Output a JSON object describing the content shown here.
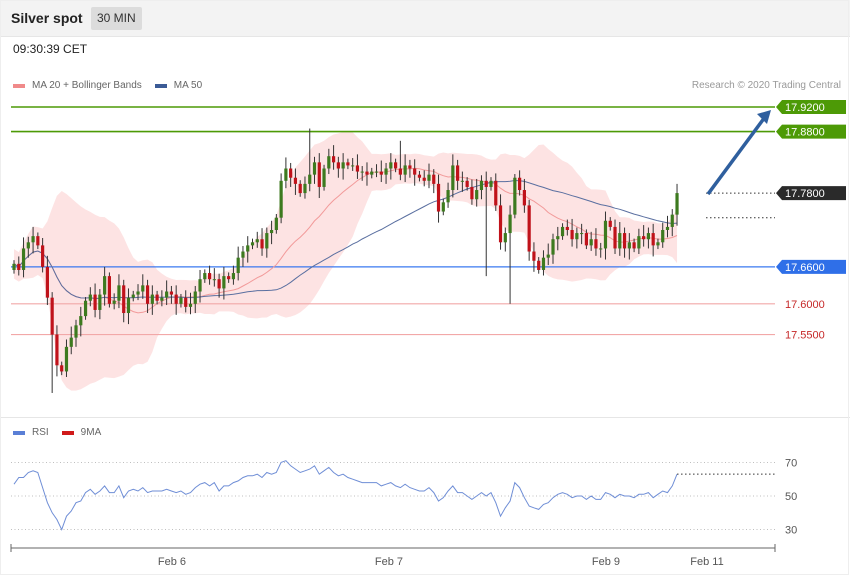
{
  "header": {
    "title": "Silver spot",
    "timeframe": "30 MIN"
  },
  "timestamp": "09:30:39 CET",
  "legend": {
    "ma20": "MA 20 + Bollinger Bands",
    "ma50": "MA 50",
    "rsi": "RSI",
    "ma9": "9MA"
  },
  "credit": "Research © 2020 Trading Central",
  "colors": {
    "bull": "#3d7a1f",
    "bear": "#c0121a",
    "band": "#fcdada",
    "ma50": "#5a6fa0",
    "resistance": "#4d9a06",
    "pivot": "#3a78f0",
    "support": "#f2a8a8",
    "rsi": "#6f8ed6",
    "arrow": "#2f5f9e"
  },
  "chart_data": [
    {
      "type": "candlestick",
      "title": "Silver spot",
      "interval": "30 MIN",
      "x_tick_labels": [
        "Feb 6",
        "Feb 7",
        "Feb 9",
        "Feb 11"
      ],
      "ylim": [
        17.45,
        17.93
      ],
      "last_price": 17.78,
      "levels": [
        {
          "label": "17.9200",
          "value": 17.92,
          "kind": "resistance"
        },
        {
          "label": "17.8800",
          "value": 17.88,
          "kind": "resistance"
        },
        {
          "label": "17.7800",
          "value": 17.78,
          "kind": "last"
        },
        {
          "label": "17.6600",
          "value": 17.66,
          "kind": "pivot"
        },
        {
          "label": "17.6000",
          "value": 17.6,
          "kind": "support"
        },
        {
          "label": "17.5500",
          "value": 17.55,
          "kind": "support"
        }
      ],
      "forecast_arrow": {
        "from": 17.78,
        "to": 17.92
      },
      "close": [
        17.665,
        17.655,
        17.69,
        17.7,
        17.71,
        17.695,
        17.66,
        17.61,
        17.55,
        17.5,
        17.49,
        17.53,
        17.545,
        17.565,
        17.58,
        17.605,
        17.615,
        17.59,
        17.615,
        17.645,
        17.6,
        17.605,
        17.63,
        17.585,
        17.61,
        17.615,
        17.62,
        17.63,
        17.6,
        17.615,
        17.605,
        17.61,
        17.62,
        17.615,
        17.6,
        17.61,
        17.595,
        17.6,
        17.62,
        17.64,
        17.65,
        17.64,
        17.64,
        17.625,
        17.645,
        17.64,
        17.65,
        17.675,
        17.685,
        17.695,
        17.7,
        17.705,
        17.69,
        17.715,
        17.72,
        17.74,
        17.8,
        17.82,
        17.805,
        17.795,
        17.78,
        17.795,
        17.81,
        17.83,
        17.79,
        17.82,
        17.84,
        17.83,
        17.82,
        17.83,
        17.825,
        17.825,
        17.815,
        17.815,
        17.81,
        17.815,
        17.815,
        17.81,
        17.82,
        17.83,
        17.82,
        17.81,
        17.825,
        17.82,
        17.81,
        17.805,
        17.8,
        17.81,
        17.795,
        17.75,
        17.765,
        17.785,
        17.825,
        17.8,
        17.8,
        17.79,
        17.77,
        17.785,
        17.8,
        17.79,
        17.8,
        17.76,
        17.7,
        17.715,
        17.745,
        17.805,
        17.785,
        17.76,
        17.685,
        17.67,
        17.655,
        17.675,
        17.68,
        17.705,
        17.71,
        17.725,
        17.72,
        17.705,
        17.715,
        17.715,
        17.695,
        17.705,
        17.69,
        17.69,
        17.735,
        17.725,
        17.69,
        17.715,
        17.69,
        17.7,
        17.69,
        17.71,
        17.705,
        17.715,
        17.695,
        17.7,
        17.72,
        17.725,
        17.745,
        17.78
      ]
    },
    {
      "type": "line",
      "title": "RSI",
      "series": [
        {
          "name": "RSI"
        },
        {
          "name": "9MA"
        }
      ],
      "y_tick_labels": [
        "70",
        "50",
        "30"
      ],
      "ylim": [
        20,
        80
      ],
      "values": [
        57,
        61,
        61,
        64,
        65,
        64,
        55,
        46,
        40,
        36,
        30,
        38,
        41,
        46,
        47,
        52,
        54,
        51,
        53,
        56,
        52,
        52,
        56,
        49,
        53,
        54,
        53,
        55,
        52,
        53,
        53,
        53,
        54,
        53,
        52,
        53,
        51,
        52,
        55,
        57,
        58,
        56,
        58,
        53,
        56,
        56,
        58,
        59,
        61,
        62,
        62,
        63,
        61,
        64,
        63,
        64,
        70,
        71,
        68,
        66,
        64,
        65,
        66,
        68,
        63,
        65,
        67,
        64,
        62,
        63,
        61,
        60,
        59,
        58,
        58,
        58,
        58,
        56,
        57,
        58,
        56,
        55,
        57,
        55,
        54,
        53,
        53,
        55,
        52,
        47,
        49,
        53,
        56,
        52,
        52,
        50,
        48,
        50,
        52,
        50,
        52,
        46,
        38,
        43,
        47,
        58,
        55,
        49,
        44,
        43,
        42,
        45,
        46,
        49,
        51,
        52,
        51,
        49,
        50,
        50,
        48,
        50,
        48,
        48,
        52,
        51,
        49,
        51,
        50,
        50,
        49,
        51,
        51,
        52,
        49,
        51,
        53,
        52,
        56,
        63
      ]
    }
  ]
}
